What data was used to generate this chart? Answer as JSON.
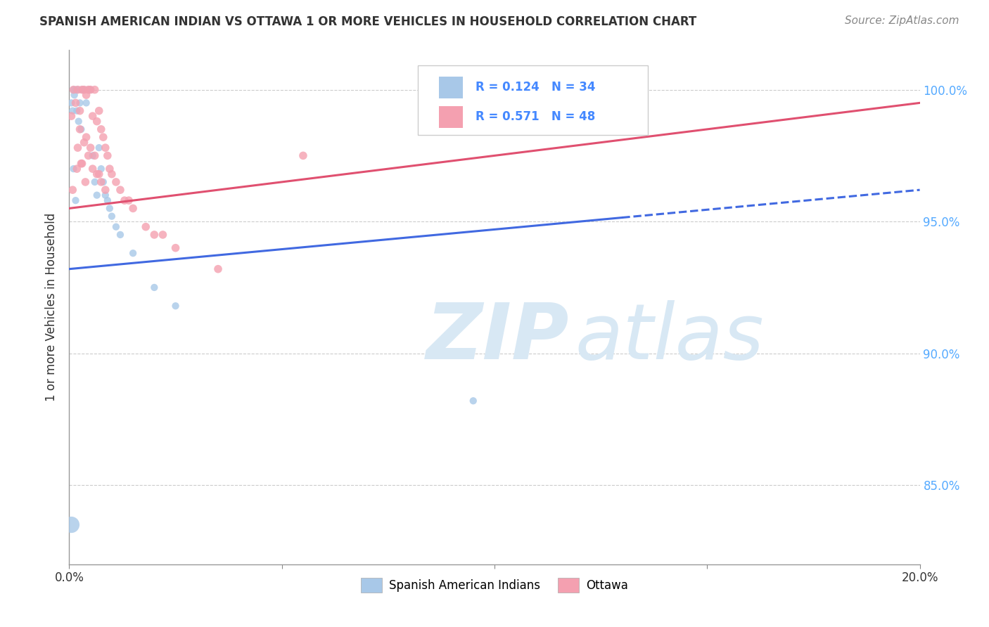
{
  "title": "SPANISH AMERICAN INDIAN VS OTTAWA 1 OR MORE VEHICLES IN HOUSEHOLD CORRELATION CHART",
  "source": "Source: ZipAtlas.com",
  "ylabel": "1 or more Vehicles in Household",
  "y_ticks": [
    85.0,
    90.0,
    95.0,
    100.0
  ],
  "y_tick_labels": [
    "85.0%",
    "90.0%",
    "95.0%",
    "100.0%"
  ],
  "x_min": 0.0,
  "x_max": 20.0,
  "y_min": 82.0,
  "y_max": 101.5,
  "legend_R1": "R = 0.124",
  "legend_N1": "N = 34",
  "legend_R2": "R = 0.571",
  "legend_N2": "N = 48",
  "color_blue": "#A8C8E8",
  "color_blue_line": "#4169E1",
  "color_pink": "#F4A0B0",
  "color_pink_line": "#E05070",
  "color_R_N": "#4488FF",
  "watermark_color": "#D8E8F4",
  "blue_x": [
    0.05,
    0.08,
    0.1,
    0.12,
    0.15,
    0.18,
    0.2,
    0.22,
    0.25,
    0.28,
    0.3,
    0.35,
    0.4,
    0.45,
    0.5,
    0.55,
    0.6,
    0.65,
    0.7,
    0.75,
    0.8,
    0.85,
    0.9,
    0.95,
    1.0,
    1.1,
    1.2,
    1.5,
    2.0,
    2.5,
    0.1,
    0.15,
    9.5,
    0.05
  ],
  "blue_y": [
    99.5,
    99.2,
    100.0,
    99.8,
    100.0,
    99.2,
    100.0,
    98.8,
    99.5,
    98.5,
    100.0,
    100.0,
    99.5,
    100.0,
    100.0,
    97.5,
    96.5,
    96.0,
    97.8,
    97.0,
    96.5,
    96.0,
    95.8,
    95.5,
    95.2,
    94.8,
    94.5,
    93.8,
    92.5,
    91.8,
    97.0,
    95.8,
    88.2,
    83.5
  ],
  "blue_sizes": [
    55,
    55,
    55,
    55,
    55,
    55,
    55,
    55,
    55,
    55,
    55,
    55,
    55,
    55,
    55,
    55,
    55,
    55,
    55,
    55,
    55,
    55,
    55,
    55,
    55,
    55,
    55,
    55,
    55,
    55,
    55,
    55,
    55,
    280
  ],
  "pink_x": [
    0.05,
    0.1,
    0.15,
    0.2,
    0.25,
    0.3,
    0.35,
    0.4,
    0.45,
    0.5,
    0.55,
    0.6,
    0.65,
    0.7,
    0.75,
    0.8,
    0.85,
    0.9,
    0.95,
    1.0,
    1.1,
    1.2,
    1.3,
    1.5,
    1.8,
    2.0,
    2.5,
    3.5,
    0.25,
    0.35,
    0.45,
    0.55,
    0.65,
    0.75,
    0.85,
    1.4,
    0.2,
    0.4,
    0.3,
    0.5,
    0.6,
    0.7,
    0.38,
    0.28,
    0.18,
    0.08,
    2.2,
    5.5
  ],
  "pink_y": [
    99.0,
    100.0,
    99.5,
    100.0,
    99.2,
    100.0,
    100.0,
    99.8,
    100.0,
    100.0,
    99.0,
    100.0,
    98.8,
    99.2,
    98.5,
    98.2,
    97.8,
    97.5,
    97.0,
    96.8,
    96.5,
    96.2,
    95.8,
    95.5,
    94.8,
    94.5,
    94.0,
    93.2,
    98.5,
    98.0,
    97.5,
    97.0,
    96.8,
    96.5,
    96.2,
    95.8,
    97.8,
    98.2,
    97.2,
    97.8,
    97.5,
    96.8,
    96.5,
    97.2,
    97.0,
    96.2,
    94.5,
    97.5
  ],
  "pink_sizes": [
    70,
    70,
    70,
    70,
    70,
    70,
    70,
    70,
    70,
    70,
    70,
    70,
    70,
    70,
    70,
    70,
    70,
    70,
    70,
    70,
    70,
    70,
    70,
    70,
    70,
    70,
    70,
    70,
    70,
    70,
    70,
    70,
    70,
    70,
    70,
    70,
    70,
    70,
    70,
    70,
    70,
    70,
    70,
    70,
    70,
    70,
    70,
    70
  ],
  "blue_reg_x0": 0.0,
  "blue_reg_y0": 93.2,
  "blue_reg_x1": 20.0,
  "blue_reg_y1": 96.2,
  "blue_solid_end": 13.0,
  "pink_reg_x0": 0.0,
  "pink_reg_y0": 95.5,
  "pink_reg_x1": 20.0,
  "pink_reg_y1": 99.5
}
